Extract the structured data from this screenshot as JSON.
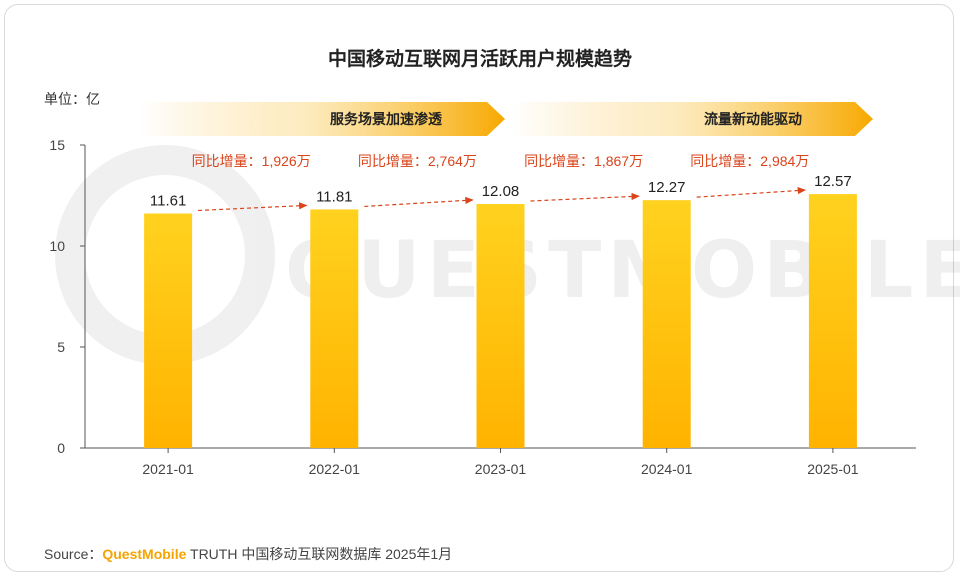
{
  "title": "中国移动互联网月活跃用户规模趋势",
  "unit_label": "单位：亿",
  "phases": [
    {
      "label": "服务场景加速渗透"
    },
    {
      "label": "流量新动能驱动"
    }
  ],
  "source": {
    "prefix": "Source：",
    "brand": "QuestMobile",
    "rest": " TRUTH 中国移动互联网数据库 2025年1月"
  },
  "watermark": "QUESTMOBILE",
  "colors": {
    "bar_top": "#FFD21F",
    "bar_bottom": "#FFB300",
    "arrow": "#D9441A",
    "growth_text": "#D9441A",
    "phase_band": "#F7A800"
  },
  "chart_data": {
    "type": "bar",
    "categories": [
      "2021-01",
      "2022-01",
      "2023-01",
      "2024-01",
      "2025-01"
    ],
    "values": [
      11.61,
      11.81,
      12.08,
      12.27,
      12.57
    ],
    "value_labels": [
      "11.61",
      "11.81",
      "12.08",
      "12.27",
      "12.57"
    ],
    "ylim": [
      0,
      15
    ],
    "yticks": [
      0,
      5,
      10,
      15
    ],
    "grid": false,
    "growth_annotations": [
      "同比增量：1,926万",
      "同比增量：2,764万",
      "同比增量：1,867万",
      "同比增量：2,984万"
    ]
  }
}
